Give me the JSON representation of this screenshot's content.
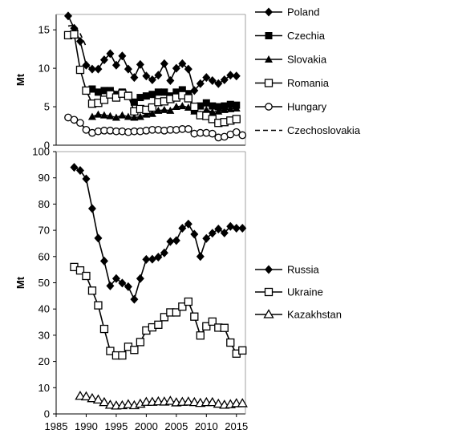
{
  "chart_data": [
    {
      "type": "line",
      "title": "",
      "xlabel": "",
      "ylabel": "Mt",
      "xlim": [
        1985,
        2016.5
      ],
      "ylim": [
        0,
        17
      ],
      "yticks": [
        0,
        5,
        10,
        15
      ],
      "grid": false,
      "legend_position": "right",
      "series": [
        {
          "name": "Poland",
          "marker": "diamond",
          "x": [
            1987,
            1988,
            1989,
            1990,
            1991,
            1992,
            1993,
            1994,
            1995,
            1996,
            1997,
            1998,
            1999,
            2000,
            2001,
            2002,
            2003,
            2004,
            2005,
            2006,
            2007,
            2008,
            2009,
            2010,
            2011,
            2012,
            2013,
            2014,
            2015
          ],
          "y": [
            16.8,
            15.2,
            13.5,
            10.4,
            9.9,
            9.9,
            11.1,
            11.9,
            10.4,
            11.6,
            9.9,
            8.8,
            10.5,
            9.0,
            8.5,
            9.1,
            10.6,
            8.4,
            10.0,
            10.6,
            9.9,
            7.1,
            8.0,
            8.8,
            8.4,
            8.0,
            8.5,
            9.1,
            9.0
          ]
        },
        {
          "name": "Czechia",
          "marker": "square",
          "x": [
            1991,
            1992,
            1993,
            1994,
            1995,
            1996,
            1997,
            1998,
            1999,
            2000,
            2001,
            2002,
            2003,
            2004,
            2005,
            2006,
            2007,
            2008,
            2009,
            2010,
            2011,
            2012,
            2013,
            2014,
            2015
          ],
          "y": [
            7.3,
            6.9,
            7.1,
            7.1,
            6.6,
            6.9,
            6.5,
            5.6,
            6.2,
            6.4,
            6.6,
            6.9,
            6.9,
            6.4,
            6.9,
            7.2,
            6.7,
            4.6,
            5.1,
            5.5,
            5.1,
            5.0,
            5.1,
            5.3,
            5.2
          ]
        },
        {
          "name": "Slovakia",
          "marker": "triangle",
          "x": [
            1991,
            1992,
            1993,
            1994,
            1995,
            1996,
            1997,
            1998,
            1999,
            2000,
            2001,
            2002,
            2003,
            2004,
            2005,
            2006,
            2007,
            2008,
            2009,
            2010,
            2011,
            2012,
            2013,
            2014,
            2015
          ],
          "y": [
            3.7,
            4.0,
            3.9,
            3.8,
            3.6,
            3.9,
            3.7,
            3.6,
            3.7,
            4.0,
            4.1,
            4.5,
            4.6,
            4.5,
            5.0,
            5.1,
            4.9,
            4.4,
            4.0,
            4.6,
            4.3,
            4.4,
            4.6,
            4.7,
            4.8
          ]
        },
        {
          "name": "Romania",
          "marker": "open-square",
          "x": [
            1987,
            1988,
            1989,
            1990,
            1991,
            1992,
            1993,
            1994,
            1995,
            1996,
            1997,
            1998,
            1999,
            2000,
            2001,
            2002,
            2003,
            2004,
            2005,
            2006,
            2007,
            2008,
            2009,
            2010,
            2011,
            2012,
            2013,
            2014,
            2015
          ],
          "y": [
            14.3,
            14.4,
            9.8,
            7.1,
            5.4,
            5.5,
            5.9,
            6.6,
            6.2,
            6.7,
            6.4,
            4.4,
            4.7,
            4.6,
            4.9,
            5.6,
            5.7,
            6.0,
            6.2,
            6.5,
            6.1,
            5.0,
            3.9,
            3.8,
            3.4,
            2.9,
            3.0,
            3.2,
            3.4
          ]
        },
        {
          "name": "Hungary",
          "marker": "circle",
          "x": [
            1987,
            1988,
            1989,
            1990,
            1991,
            1992,
            1993,
            1994,
            1995,
            1996,
            1997,
            1998,
            1999,
            2000,
            2001,
            2002,
            2003,
            2004,
            2005,
            2006,
            2007,
            2008,
            2009,
            2010,
            2011,
            2012,
            2013,
            2014,
            2015,
            2016
          ],
          "y": [
            3.6,
            3.3,
            2.9,
            2.0,
            1.6,
            1.8,
            1.9,
            1.9,
            1.8,
            1.8,
            1.7,
            1.8,
            1.8,
            1.9,
            2.0,
            2.0,
            1.9,
            2.0,
            2.0,
            2.1,
            2.1,
            1.5,
            1.6,
            1.6,
            1.5,
            1.0,
            1.1,
            1.4,
            1.7,
            1.3
          ]
        },
        {
          "name": "Czechoslovakia",
          "marker": "none",
          "dashed": true,
          "x": [
            1987,
            1988,
            1989,
            1990
          ],
          "y": [
            15.5,
            15.6,
            14.5,
            12.8
          ]
        }
      ]
    },
    {
      "type": "line",
      "title": "",
      "xlabel": "",
      "ylabel": "Mt",
      "xlim": [
        1985,
        2016.5
      ],
      "ylim": [
        0,
        100
      ],
      "yticks": [
        0,
        10,
        20,
        30,
        40,
        50,
        60,
        70,
        80,
        90,
        100
      ],
      "xticks": [
        1985,
        1990,
        1995,
        2000,
        2005,
        2010,
        2015
      ],
      "grid": false,
      "legend_position": "right",
      "series": [
        {
          "name": "Russia",
          "marker": "diamond",
          "x": [
            1988,
            1989,
            1990,
            1991,
            1992,
            1993,
            1994,
            1995,
            1996,
            1997,
            1998,
            1999,
            2000,
            2001,
            2002,
            2003,
            2004,
            2005,
            2006,
            2007,
            2008,
            2009,
            2010,
            2011,
            2012,
            2013,
            2014,
            2015,
            2016
          ],
          "y": [
            94.0,
            92.8,
            89.6,
            78.3,
            67.0,
            58.3,
            48.8,
            51.6,
            49.9,
            48.5,
            43.7,
            51.6,
            58.9,
            59.0,
            59.8,
            61.4,
            65.7,
            66.1,
            70.8,
            72.4,
            68.5,
            60.0,
            66.9,
            68.9,
            70.5,
            69.0,
            71.5,
            70.8,
            70.8
          ]
        },
        {
          "name": "Ukraine",
          "marker": "open-square",
          "x": [
            1988,
            1989,
            1990,
            1991,
            1992,
            1993,
            1994,
            1995,
            1996,
            1997,
            1998,
            1999,
            2000,
            2001,
            2002,
            2003,
            2004,
            2005,
            2006,
            2007,
            2008,
            2009,
            2010,
            2011,
            2012,
            2013,
            2014,
            2015,
            2016
          ],
          "y": [
            56.0,
            54.7,
            52.6,
            47.0,
            41.4,
            32.4,
            24.0,
            22.3,
            22.3,
            25.6,
            24.4,
            27.4,
            31.8,
            33.0,
            34.0,
            36.9,
            38.7,
            38.7,
            40.9,
            42.8,
            37.1,
            29.9,
            33.4,
            35.2,
            32.9,
            32.8,
            27.2,
            23.0,
            24.2
          ]
        },
        {
          "name": "Kazakhstan",
          "marker": "open-triangle",
          "x": [
            1989,
            1990,
            1991,
            1992,
            1993,
            1994,
            1995,
            1996,
            1997,
            1998,
            1999,
            2000,
            2001,
            2002,
            2003,
            2004,
            2005,
            2006,
            2007,
            2008,
            2009,
            2010,
            2011,
            2012,
            2013,
            2014,
            2015,
            2016
          ],
          "y": [
            6.8,
            6.6,
            5.9,
            5.4,
            4.4,
            3.4,
            3.1,
            3.2,
            3.6,
            3.2,
            3.8,
            4.5,
            4.5,
            4.7,
            4.6,
            4.9,
            4.3,
            4.5,
            4.6,
            4.4,
            4.1,
            4.4,
            4.4,
            3.8,
            3.4,
            3.6,
            4.0,
            4.0
          ]
        }
      ]
    }
  ]
}
